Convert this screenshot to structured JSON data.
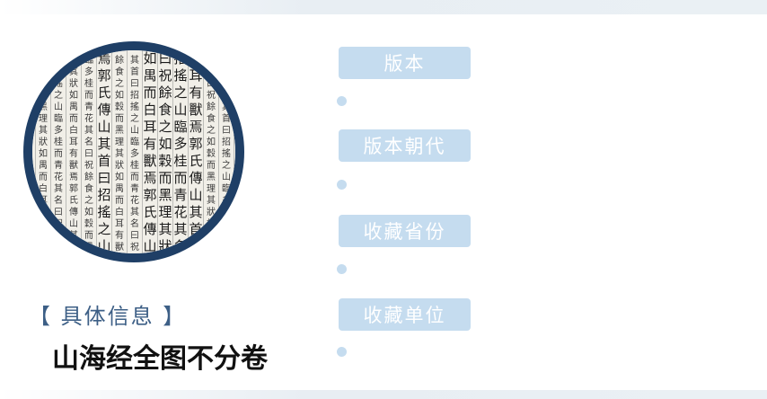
{
  "colors": {
    "label_background": "#c5dcef",
    "label_text": "#ffffff",
    "frame": "#1f3f66",
    "section_label": "#3d5f86"
  },
  "image": {
    "kind": "photo of classical Chinese woodblock-printed text in a circular frame",
    "printed_text": "郭氏傳 山其首曰招搖之山臨 多桂 而青花其名曰祝餘 食之 如穀而黑理 其狀如禺而白耳 有獸焉"
  },
  "section_label": "【 具体信息 】",
  "title": "山海经全图不分卷",
  "fields": [
    {
      "label": "版本",
      "value": ""
    },
    {
      "label": "版本朝代",
      "value": ""
    },
    {
      "label": "收藏省份",
      "value": ""
    },
    {
      "label": "收藏单位",
      "value": ""
    }
  ]
}
